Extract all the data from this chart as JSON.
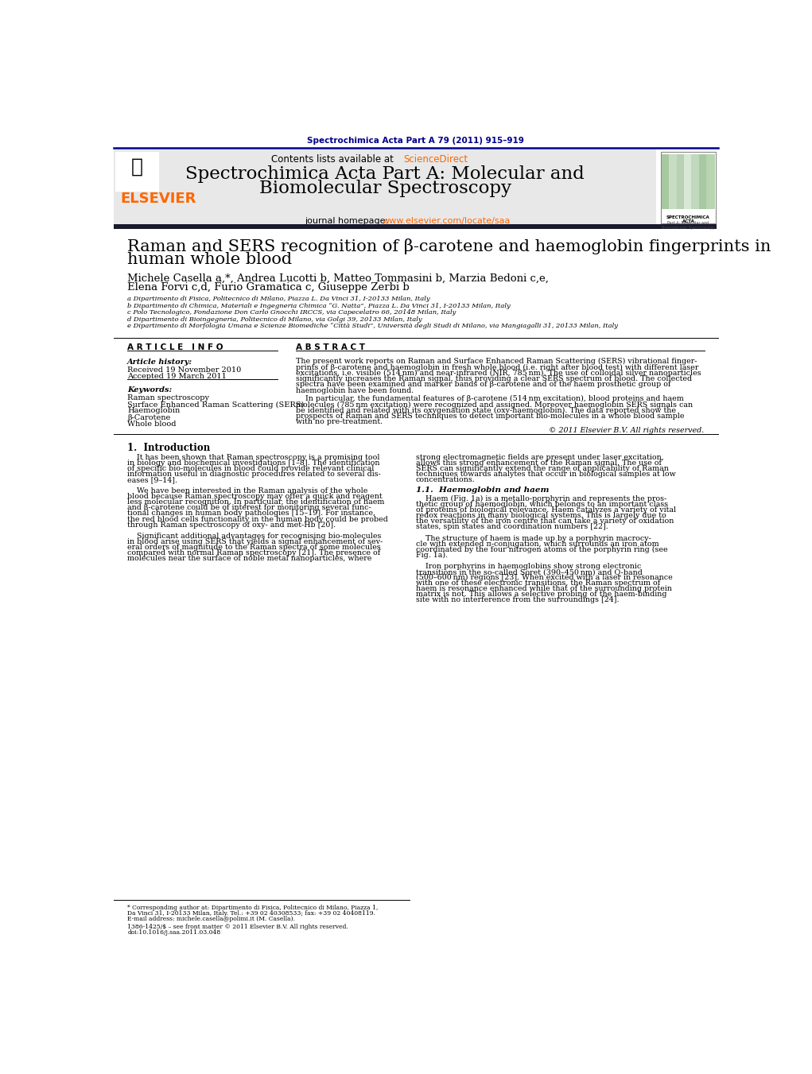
{
  "page_bg": "#ffffff",
  "top_journal_ref": "Spectrochimica Acta Part A 79 (2011) 915–919",
  "top_journal_ref_color": "#00008B",
  "journal_name_line1": "Spectrochimica Acta Part A: Molecular and",
  "journal_name_line2": "Biomolecular Spectroscopy",
  "sciencedirect_color": "#FF6600",
  "journal_homepage_link_color": "#FF6600",
  "header_bg": "#E8E8E8",
  "elsevier_color": "#FF6600",
  "title_line1": "Raman and SERS recognition of β-carotene and haemoglobin fingerprints in",
  "title_line2": "human whole blood",
  "authors_line1": "Michele Casella a,*, Andrea Lucotti b, Matteo Tommasini b, Marzia Bedoni c,e,",
  "authors_line2": "Elena Forvi c,d, Furio Gramatica c, Giuseppe Zerbi b",
  "aff_a": "a Dipartimento di Fisica, Politecnico di Milano, Piazza L. Da Vinci 31, I-20133 Milan, Italy",
  "aff_b": "b Dipartimento di Chimica, Materiali e Ingegneria Chimica “G. Natta”, Piazza L. Da Vinci 31, I-20133 Milan, Italy",
  "aff_c": "c Polo Tecnologico, Fondazione Don Carlo Gnocchi IRCCS, via Capecelatro 66, 20148 Milan, Italy",
  "aff_d": "d Dipartimento di Bioingegneria, Politecnico di Milano, via Golgi 39, 20133 Milan, Italy",
  "aff_e": "e Dipartimento di Morfologia Umana e Scienze Biomediche “Città Studi”, Università degli Studi di Milano, via Mangiagalli 31, 20133 Milan, Italy",
  "article_info_header": "A R T I C L E   I N F O",
  "abstract_header": "A B S T R A C T",
  "article_history_label": "Article history:",
  "received": "Received 19 November 2010",
  "accepted": "Accepted 19 March 2011",
  "keywords_label": "Keywords:",
  "keyword1": "Raman spectroscopy",
  "keyword2": "Surface Enhanced Raman Scattering (SERS)",
  "keyword3": "Haemoglobin",
  "keyword4": "β-Carotene",
  "keyword5": "Whole blood",
  "abstract_para1_lines": [
    "The present work reports on Raman and Surface Enhanced Raman Scattering (SERS) vibrational finger-",
    "prints of β-carotene and haemoglobin in fresh whole blood (i.e. right after blood test) with different laser",
    "excitations, i.e. visible (514 nm) and near-infrared (NIR, 785 nm). The use of colloidal silver nanoparticles",
    "significantly increases the Raman signal, thus providing a clear SERS spectrum of blood. The collected",
    "spectra have been examined and marker bands of β-carotene and of the haem prosthetic group of",
    "haemoglobin have been found."
  ],
  "abstract_para2_lines": [
    "    In particular, the fundamental features of β-carotene (514 nm excitation), blood proteins and haem",
    "molecules (785 nm excitation) were recognized and assigned. Moreover haemoglobin SERS signals can",
    "be identified and related with its oxygenation state (oxy-haemoglobin). The data reported show the",
    "prospects of Raman and SERS techniques to detect important bio-molecules in a whole blood sample",
    "with no pre-treatment."
  ],
  "copyright": "© 2011 Elsevier B.V. All rights reserved.",
  "intro_header": "1.  Introduction",
  "intro_col1_lines": [
    "    It has been shown that Raman spectroscopy is a promising tool",
    "in biology and biochemical investigations [1–8]. The identification",
    "of specific bio-molecules in blood could provide relevant clinical",
    "information useful in diagnostic procedures related to several dis-",
    "eases [9–14].",
    "",
    "    We have been interested in the Raman analysis of the whole",
    "blood because Raman spectroscopy may offer a quick and reagent",
    "less molecular recognition. In particular, the identification of haem",
    "and β-carotene could be of interest for monitoring several func-",
    "tional changes in human body pathologies [15–19]. For instance,",
    "the red blood cells functionality in the human body could be probed",
    "through Raman spectroscopy of oxy- and met-Hb [20].",
    "",
    "    Significant additional advantages for recognising bio-molecules",
    "in blood arise using SERS that yields a signal enhancement of sev-",
    "eral orders of magnitude to the Raman spectra of some molecules",
    "compared with normal Raman spectroscopy [21]. The presence of",
    "molecules near the surface of noble metal nanoparticles, where"
  ],
  "intro_col2_lines": [
    "strong electromagnetic fields are present under laser excitation,",
    "allows this strong enhancement of the Raman signal. The use of",
    "SERS can significantly extend the range of applicability of Raman",
    "techniques towards analytes that occur in biological samples at low",
    "concentrations."
  ],
  "subsection_1_1": "1.1.  Haemoglobin and haem",
  "subsection_1_1_lines": [
    "    Haem (Fig. 1a) is a metallo-porphyrin and represents the pros-",
    "thetic group of haemoglobin, which belongs to an important class",
    "of proteins of biological relevance. Haem catalyzes a variety of vital",
    "redox reactions in many biological systems. This is largely due to",
    "the versatility of the iron centre that can take a variety of oxidation",
    "states, spin states and coordination numbers [22].",
    "",
    "    The structure of haem is made up by a porphyrin macrocy-",
    "cle with extended π-conjugation, which surrounds an iron atom",
    "coordinated by the four nitrogen atoms of the porphyrin ring (see",
    "Fig. 1a).",
    "",
    "    Iron porphyrins in haemoglobins show strong electronic",
    "transitions in the so-called Soret (390–450 nm) and Q-band",
    "(500–600 nm) regions [23]. When excited with a laser in resonance",
    "with one of these electronic transitions, the Raman spectrum of",
    "haem is resonance enhanced while that of the surrounding protein",
    "matrix is not. This allows a selective probing of the haem-binding",
    "site with no interference from the surroundings [24]."
  ],
  "footer_line1": "* Corresponding author at: Dipartimento di Fisica, Politecnico di Milano, Piazza 1,",
  "footer_line2": "Da Vinci 31, I-20133 Milan, Italy. Tel.: +39 02 40308533; fax: +39 02 40408119.",
  "footer_line3": "E-mail address: michele.casella@polimi.it (M. Casella).",
  "footer_issn": "1386-1425/$ – see front matter © 2011 Elsevier B.V. All rights reserved.",
  "footer_doi": "doi:10.1016/j.saa.2011.03.048",
  "dark_bar_color": "#1a1a2e"
}
